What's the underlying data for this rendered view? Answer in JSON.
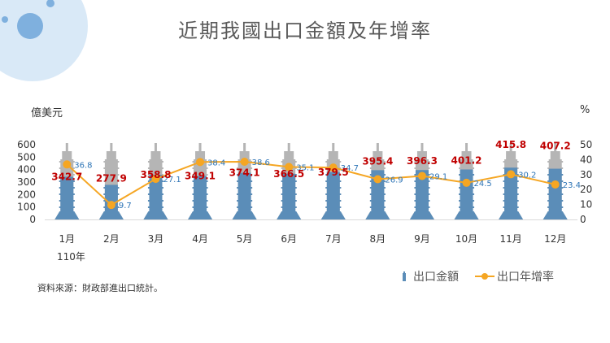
{
  "chart_data": {
    "type": "bar",
    "title": "近期我國出口金額及年增率",
    "categories": [
      "1月",
      "2月",
      "3月",
      "4月",
      "5月",
      "6月",
      "7月",
      "8月",
      "9月",
      "10月",
      "11月",
      "12月"
    ],
    "year_label": "110年",
    "series": [
      {
        "name": "出口金額",
        "type": "bar",
        "axis": "left",
        "unit": "億美元",
        "values": [
          342.7,
          277.9,
          358.8,
          349.1,
          374.1,
          366.5,
          379.5,
          395.4,
          396.3,
          401.2,
          415.8,
          407.2
        ]
      },
      {
        "name": "出口年增率",
        "type": "line",
        "axis": "right",
        "unit": "%",
        "values": [
          36.8,
          9.7,
          27.1,
          38.4,
          38.6,
          35.1,
          34.7,
          26.9,
          29.1,
          24.5,
          30.2,
          23.4
        ]
      }
    ],
    "ylabel": "億美元",
    "y2label": "%",
    "ylim": [
      0,
      600
    ],
    "y2lim": [
      0,
      50
    ],
    "yticks": [
      0,
      100,
      200,
      300,
      400,
      500,
      600
    ],
    "y2ticks": [
      0,
      10,
      20,
      30,
      40,
      50
    ],
    "legend_position": "bottom-right",
    "grid": false,
    "colors": {
      "bar_fill": "#5b8db8",
      "bar_background": "#b5b5b5",
      "line": "#f5a623",
      "bar_label": "#c00000",
      "line_label": "#2e75b6"
    }
  },
  "source": "資料來源：財政部進出口統計。"
}
